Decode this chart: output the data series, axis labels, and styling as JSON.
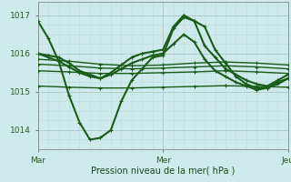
{
  "bg_color": "#ceeaea",
  "grid_color_major": "#aacece",
  "grid_color_minor": "#bbdddd",
  "vline_color": "#cc4444",
  "line_color": "#1a5c1a",
  "ylabel_values": [
    1014,
    1015,
    1016,
    1017
  ],
  "xlim": [
    0,
    48
  ],
  "ylim": [
    1013.5,
    1017.35
  ],
  "xlabel": "Pression niveau de la mer( hPa )",
  "xtick_positions": [
    0,
    24,
    48
  ],
  "xtick_labels": [
    "Mar",
    "Mer",
    "Jeu"
  ],
  "series": [
    {
      "x": [
        0,
        2,
        4,
        6,
        8,
        10,
        12,
        14,
        16,
        18,
        20,
        22,
        24,
        26,
        28,
        30,
        32,
        34,
        36,
        38,
        40,
        42,
        44,
        46,
        48
      ],
      "y": [
        1016.85,
        1016.4,
        1015.8,
        1014.9,
        1014.2,
        1013.75,
        1013.8,
        1014.0,
        1014.75,
        1015.3,
        1015.6,
        1015.9,
        1015.95,
        1016.65,
        1016.95,
        1016.85,
        1016.7,
        1016.1,
        1015.75,
        1015.4,
        1015.2,
        1015.1,
        1015.1,
        1015.25,
        1015.35
      ],
      "lw": 1.5
    },
    {
      "x": [
        0,
        2,
        4,
        6,
        8,
        10,
        12,
        14,
        16,
        18,
        20,
        22,
        24,
        26,
        28,
        30,
        32,
        34,
        36,
        38,
        40,
        42,
        44,
        46,
        48
      ],
      "y": [
        1016.0,
        1015.95,
        1015.9,
        1015.75,
        1015.55,
        1015.45,
        1015.35,
        1015.5,
        1015.7,
        1015.9,
        1016.0,
        1016.05,
        1016.1,
        1016.7,
        1017.0,
        1016.85,
        1016.2,
        1015.9,
        1015.6,
        1015.45,
        1015.3,
        1015.2,
        1015.15,
        1015.3,
        1015.45
      ],
      "lw": 1.5
    },
    {
      "x": [
        0,
        2,
        4,
        6,
        8,
        10,
        12,
        14,
        16,
        18,
        20,
        22,
        24,
        26,
        28,
        30,
        32,
        34,
        36,
        38,
        40,
        42,
        44,
        46,
        48
      ],
      "y": [
        1016.0,
        1015.9,
        1015.8,
        1015.65,
        1015.5,
        1015.4,
        1015.35,
        1015.45,
        1015.6,
        1015.75,
        1015.85,
        1015.95,
        1016.0,
        1016.25,
        1016.5,
        1016.3,
        1015.85,
        1015.55,
        1015.4,
        1015.25,
        1015.15,
        1015.05,
        1015.1,
        1015.2,
        1015.35
      ],
      "lw": 1.5
    },
    {
      "x": [
        0,
        6,
        12,
        18,
        24,
        30,
        36,
        42,
        48
      ],
      "y": [
        1015.85,
        1015.8,
        1015.72,
        1015.68,
        1015.7,
        1015.75,
        1015.78,
        1015.75,
        1015.7
      ],
      "lw": 1.0
    },
    {
      "x": [
        0,
        6,
        12,
        18,
        24,
        30,
        36,
        42,
        48
      ],
      "y": [
        1015.72,
        1015.68,
        1015.62,
        1015.6,
        1015.62,
        1015.65,
        1015.68,
        1015.65,
        1015.6
      ],
      "lw": 1.0
    },
    {
      "x": [
        0,
        6,
        12,
        18,
        24,
        30,
        36,
        42,
        48
      ],
      "y": [
        1015.55,
        1015.52,
        1015.48,
        1015.48,
        1015.5,
        1015.52,
        1015.55,
        1015.52,
        1015.48
      ],
      "lw": 1.0
    },
    {
      "x": [
        0,
        6,
        12,
        18,
        24,
        30,
        36,
        42,
        48
      ],
      "y": [
        1015.15,
        1015.12,
        1015.1,
        1015.1,
        1015.12,
        1015.14,
        1015.16,
        1015.14,
        1015.12
      ],
      "lw": 1.0
    }
  ]
}
